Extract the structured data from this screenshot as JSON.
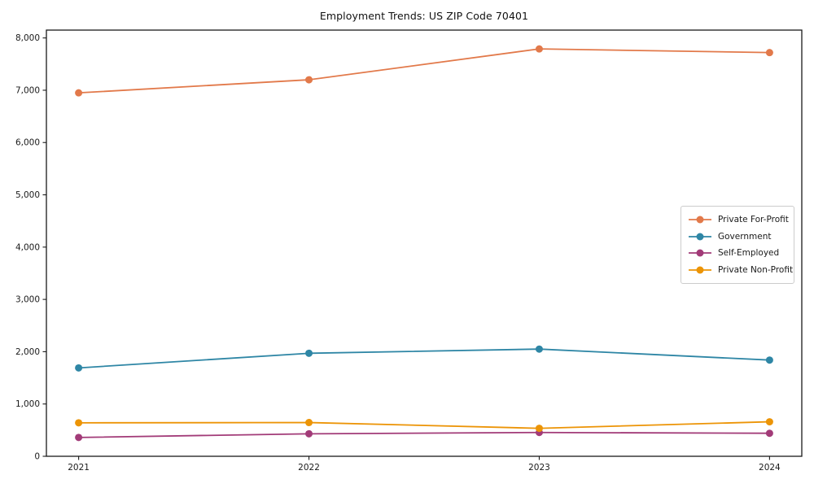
{
  "chart_data": {
    "type": "line",
    "title": "Employment Trends: US ZIP Code 70401",
    "x": [
      2021,
      2022,
      2023,
      2024
    ],
    "x_tick_labels": [
      "2021",
      "2022",
      "2023",
      "2024"
    ],
    "series": [
      {
        "name": "Private For-Profit",
        "color": "#E2794A",
        "values": [
          6950,
          7200,
          7790,
          7720
        ]
      },
      {
        "name": "Government",
        "color": "#2E86A5",
        "values": [
          1690,
          1970,
          2050,
          1840
        ]
      },
      {
        "name": "Self-Employed",
        "color": "#A23B78",
        "values": [
          360,
          430,
          455,
          440
        ]
      },
      {
        "name": "Private Non-Profit",
        "color": "#EC9406",
        "values": [
          640,
          645,
          535,
          660
        ]
      }
    ],
    "xlim": [
      2020.86,
      2024.14
    ],
    "ylim": [
      0,
      8150
    ],
    "ytick_step": 1000,
    "ytick_labels": [
      "0",
      "1,000",
      "2,000",
      "3,000",
      "4,000",
      "5,000",
      "6,000",
      "7,000",
      "8,000"
    ],
    "grid": false,
    "legend_position": "center right",
    "axis_color": "#1a1a1a",
    "background": "#ffffff"
  }
}
